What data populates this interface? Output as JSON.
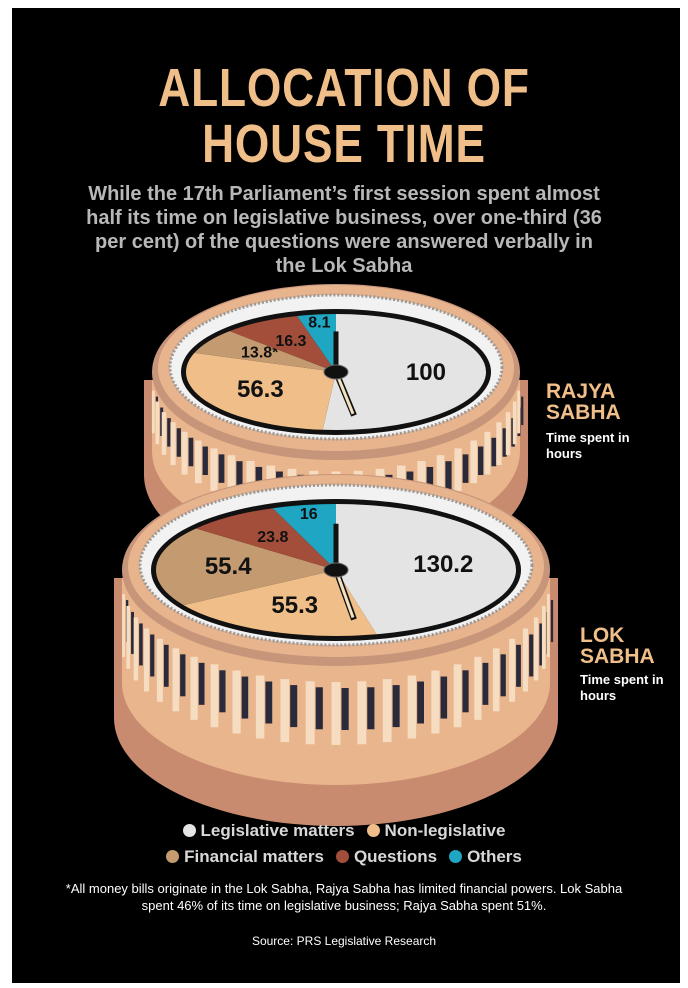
{
  "title": "ALLOCATION OF HOUSE TIME",
  "subtitle": "While the 17th Parliament’s first session spent almost half its time on legislative business, over one-third (36 per cent) of the questions were answered verbally in the Lok Sabha",
  "footnote": "*All money bills originate in the Lok Sabha, Rajya Sabha has limited financial powers. Lok Sabha spent 46% of its time on legislative business; Rajya Sabha spent 51%.",
  "source": "Source: PRS Legislative Research",
  "chart_data": [
    {
      "type": "pie",
      "title": "RAJYA SABHA",
      "subtitle": "Time spent in hours",
      "categories": [
        "Legislative matters",
        "Non-legislative",
        "Financial matters",
        "Questions",
        "Others"
      ],
      "values": [
        100,
        56.3,
        13.8,
        16.3,
        8.1
      ],
      "value_labels": [
        "100",
        "56.3",
        "13.8*",
        "16.3",
        "8.1"
      ],
      "colors": [
        "#e4e4e4",
        "#f0be88",
        "#c49a70",
        "#a24e3a",
        "#1ea6c2"
      ]
    },
    {
      "type": "pie",
      "title": "LOK SABHA",
      "subtitle": "Time spent in hours",
      "categories": [
        "Legislative matters",
        "Non-legislative",
        "Financial matters",
        "Questions",
        "Others"
      ],
      "values": [
        130.2,
        55.3,
        55.4,
        23.8,
        16
      ],
      "colors": [
        "#e4e4e4",
        "#f0be88",
        "#c49a70",
        "#a24e3a",
        "#1ea6c2"
      ]
    }
  ]
}
